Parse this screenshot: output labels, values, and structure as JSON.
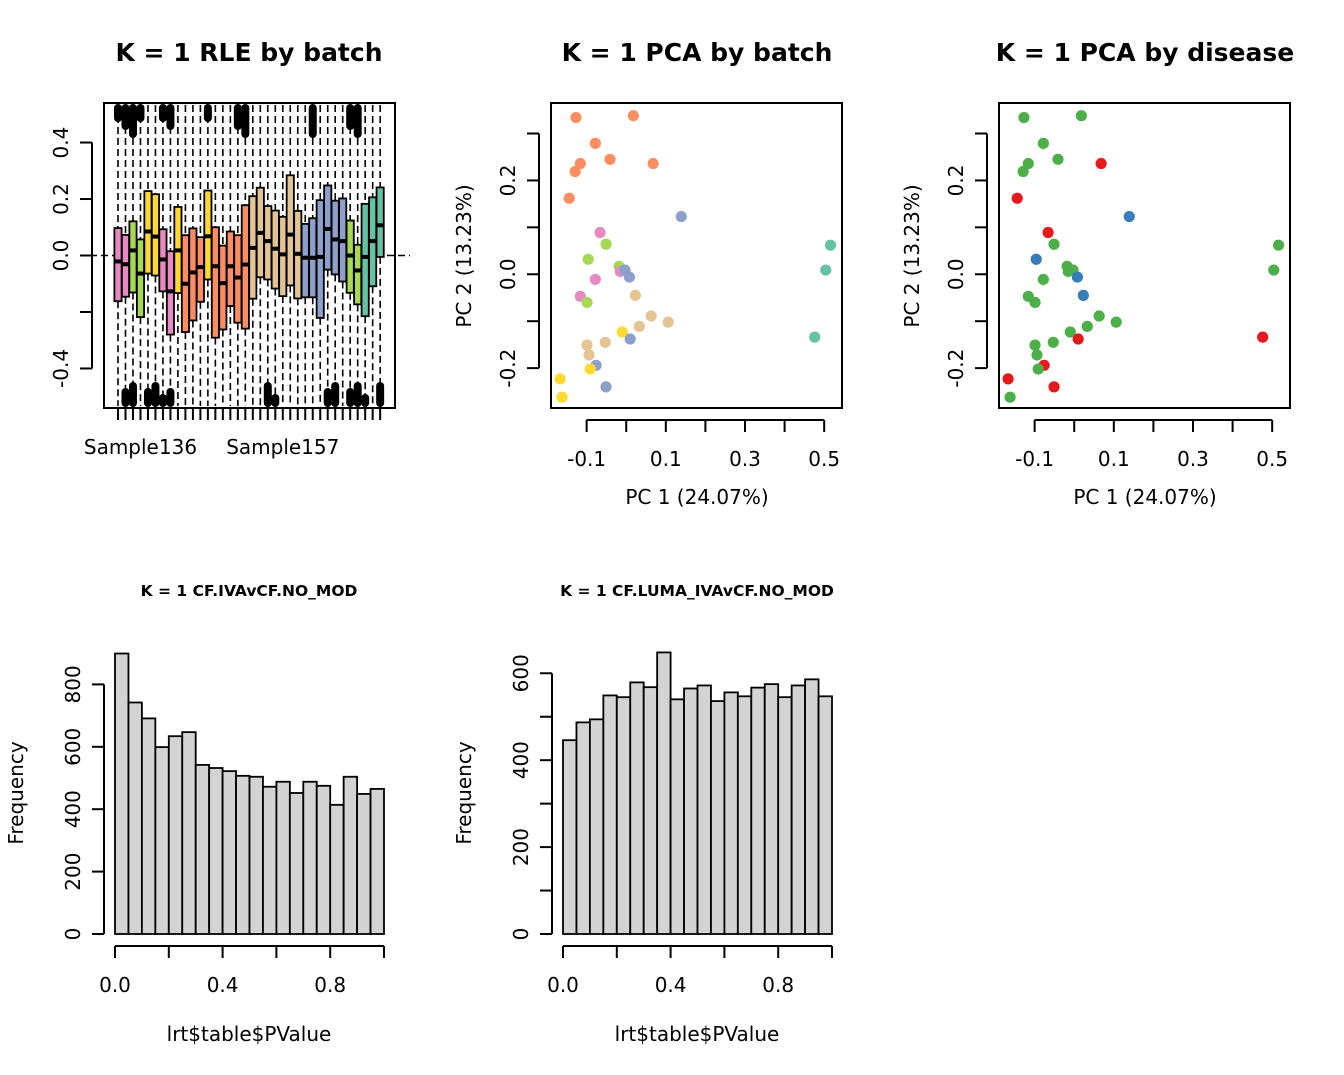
{
  "chart_data": [
    {
      "id": "rle",
      "type": "boxplot",
      "title": "K = 1 RLE by batch",
      "xlabel": "",
      "ylabel": "",
      "ylim": [
        -0.54,
        0.54
      ],
      "yticks": [
        -0.4,
        -0.2,
        0.0,
        0.2,
        0.4
      ],
      "ytick_labels": [
        "-0.4",
        "",
        "0.0",
        "0.2",
        "0.4"
      ],
      "xtick_labels": [
        {
          "index": 3,
          "label": "Sample136"
        },
        {
          "index": 22,
          "label": "Sample157"
        }
      ],
      "reference_line": 0,
      "batch_colors": {
        "pink": "#E78AC3",
        "lime": "#A6D854",
        "yellow": "#FFD92F",
        "orange": "#FC8D62",
        "tan": "#E5C494",
        "blue": "#8DA0CB",
        "teal": "#66C2A5"
      },
      "boxes": [
        {
          "batch": "pink",
          "q3": 0.097,
          "median": -0.021,
          "q1": -0.162,
          "out_top": true,
          "out_bottom": false
        },
        {
          "batch": "pink",
          "q3": 0.073,
          "median": -0.031,
          "q1": -0.146,
          "out_top": true,
          "out_bottom": true
        },
        {
          "batch": "lime",
          "q3": 0.121,
          "median": 0.018,
          "q1": -0.131,
          "out_top": true,
          "out_bottom": true
        },
        {
          "batch": "lime",
          "q3": 0.057,
          "median": -0.064,
          "q1": -0.218,
          "out_top": true,
          "out_bottom": false
        },
        {
          "batch": "yellow",
          "q3": 0.228,
          "median": 0.085,
          "q1": -0.064,
          "out_top": false,
          "out_bottom": true
        },
        {
          "batch": "yellow",
          "q3": 0.217,
          "median": 0.067,
          "q1": -0.071,
          "out_top": false,
          "out_bottom": true
        },
        {
          "batch": "pink",
          "q3": 0.093,
          "median": -0.014,
          "q1": -0.127,
          "out_top": true,
          "out_bottom": true
        },
        {
          "batch": "pink",
          "q3": 0.015,
          "median": -0.127,
          "q1": -0.28,
          "out_top": true,
          "out_bottom": true
        },
        {
          "batch": "yellow",
          "q3": 0.172,
          "median": 0.018,
          "q1": -0.133,
          "out_top": false,
          "out_bottom": false
        },
        {
          "batch": "orange",
          "q3": 0.072,
          "median": -0.1,
          "q1": -0.271,
          "out_top": false,
          "out_bottom": false
        },
        {
          "batch": "orange",
          "q3": 0.096,
          "median": -0.06,
          "q1": -0.23,
          "out_top": false,
          "out_bottom": false
        },
        {
          "batch": "orange",
          "q3": 0.065,
          "median": -0.041,
          "q1": -0.164,
          "out_top": false,
          "out_bottom": false
        },
        {
          "batch": "yellow",
          "q3": 0.23,
          "median": 0.068,
          "q1": -0.085,
          "out_top": true,
          "out_bottom": false
        },
        {
          "batch": "orange",
          "q3": 0.1,
          "median": -0.038,
          "q1": -0.291,
          "out_top": false,
          "out_bottom": false
        },
        {
          "batch": "orange",
          "q3": 0.035,
          "median": -0.098,
          "q1": -0.262,
          "out_top": false,
          "out_bottom": false
        },
        {
          "batch": "orange",
          "q3": 0.085,
          "median": -0.038,
          "q1": -0.179,
          "out_top": false,
          "out_bottom": false
        },
        {
          "batch": "orange",
          "q3": 0.072,
          "median": -0.078,
          "q1": -0.238,
          "out_top": true,
          "out_bottom": false
        },
        {
          "batch": "orange",
          "q3": 0.178,
          "median": -0.032,
          "q1": -0.259,
          "out_top": true,
          "out_bottom": false
        },
        {
          "batch": "tan",
          "q3": 0.21,
          "median": 0.027,
          "q1": -0.153,
          "out_top": false,
          "out_bottom": false
        },
        {
          "batch": "tan",
          "q3": 0.24,
          "median": 0.08,
          "q1": -0.077,
          "out_top": false,
          "out_bottom": false
        },
        {
          "batch": "tan",
          "q3": 0.175,
          "median": 0.051,
          "q1": -0.085,
          "out_top": false,
          "out_bottom": true
        },
        {
          "batch": "tan",
          "q3": 0.159,
          "median": 0.024,
          "q1": -0.117,
          "out_top": false,
          "out_bottom": true
        },
        {
          "batch": "tan",
          "q3": 0.137,
          "median": 0.004,
          "q1": -0.144,
          "out_top": false,
          "out_bottom": false
        },
        {
          "batch": "tan",
          "q3": 0.284,
          "median": 0.074,
          "q1": -0.106,
          "out_top": false,
          "out_bottom": false
        },
        {
          "batch": "tan",
          "q3": 0.158,
          "median": 0.006,
          "q1": -0.152,
          "out_top": false,
          "out_bottom": false
        },
        {
          "batch": "blue",
          "q3": 0.112,
          "median": -0.008,
          "q1": -0.148,
          "out_top": false,
          "out_bottom": false
        },
        {
          "batch": "blue",
          "q3": 0.132,
          "median": -0.008,
          "q1": -0.148,
          "out_top": true,
          "out_bottom": false
        },
        {
          "batch": "blue",
          "q3": 0.196,
          "median": -0.005,
          "q1": -0.221,
          "out_top": false,
          "out_bottom": false
        },
        {
          "batch": "blue",
          "q3": 0.248,
          "median": 0.094,
          "q1": -0.05,
          "out_top": false,
          "out_bottom": true
        },
        {
          "batch": "blue",
          "q3": 0.194,
          "median": 0.057,
          "q1": -0.067,
          "out_top": false,
          "out_bottom": true
        },
        {
          "batch": "blue",
          "q3": 0.202,
          "median": 0.051,
          "q1": -0.092,
          "out_top": false,
          "out_bottom": false
        },
        {
          "batch": "lime",
          "q3": 0.124,
          "median": 0.0,
          "q1": -0.132,
          "out_top": true,
          "out_bottom": true
        },
        {
          "batch": "lime",
          "q3": 0.038,
          "median": -0.053,
          "q1": -0.173,
          "out_top": true,
          "out_bottom": true
        },
        {
          "batch": "teal",
          "q3": 0.183,
          "median": -0.005,
          "q1": -0.215,
          "out_top": false,
          "out_bottom": true
        },
        {
          "batch": "teal",
          "q3": 0.206,
          "median": 0.051,
          "q1": -0.109,
          "out_top": false,
          "out_bottom": false
        },
        {
          "batch": "teal",
          "q3": 0.241,
          "median": 0.107,
          "q1": -0.005,
          "out_top": false,
          "out_bottom": true
        }
      ]
    },
    {
      "id": "pca_batch",
      "type": "scatter",
      "title": "K = 1 PCA by batch",
      "xlabel": "PC 1 (24.07%)",
      "ylabel": "PC 2 (13.23%)",
      "xlim": [
        -0.19,
        0.545
      ],
      "ylim": [
        -0.285,
        0.365
      ],
      "xticks": [
        -0.1,
        0.0,
        0.1,
        0.2,
        0.3,
        0.4,
        0.5
      ],
      "xtick_labels": [
        "-0.1",
        "",
        "0.1",
        "",
        "0.3",
        "",
        "0.5"
      ],
      "yticks": [
        -0.2,
        -0.1,
        0.0,
        0.1,
        0.2,
        0.3
      ],
      "ytick_labels": [
        "-0.2",
        "",
        "0.0",
        "",
        "0.2",
        ""
      ],
      "colors": {
        "orange": "#FC8D62",
        "blue": "#8DA0CB",
        "teal": "#66C2A5",
        "pink": "#E78AC3",
        "lime": "#A6D854",
        "yellow": "#FFD92F",
        "tan": "#E5C494"
      },
      "points": [
        {
          "x": -0.127,
          "y": 0.334,
          "group": "orange"
        },
        {
          "x": 0.018,
          "y": 0.338,
          "group": "orange"
        },
        {
          "x": -0.078,
          "y": 0.279,
          "group": "orange"
        },
        {
          "x": -0.041,
          "y": 0.245,
          "group": "orange"
        },
        {
          "x": 0.068,
          "y": 0.236,
          "group": "orange"
        },
        {
          "x": -0.116,
          "y": 0.236,
          "group": "orange"
        },
        {
          "x": -0.129,
          "y": 0.219,
          "group": "orange"
        },
        {
          "x": -0.144,
          "y": 0.162,
          "group": "orange"
        },
        {
          "x": 0.139,
          "y": 0.123,
          "group": "blue"
        },
        {
          "x": 0.516,
          "y": 0.062,
          "group": "teal"
        },
        {
          "x": 0.504,
          "y": 0.009,
          "group": "teal"
        },
        {
          "x": 0.476,
          "y": -0.134,
          "group": "teal"
        },
        {
          "x": -0.066,
          "y": 0.089,
          "group": "pink"
        },
        {
          "x": -0.051,
          "y": 0.064,
          "group": "lime"
        },
        {
          "x": -0.096,
          "y": 0.032,
          "group": "lime"
        },
        {
          "x": -0.018,
          "y": 0.017,
          "group": "lime"
        },
        {
          "x": -0.015,
          "y": 0.006,
          "group": "pink"
        },
        {
          "x": -0.003,
          "y": 0.009,
          "group": "blue"
        },
        {
          "x": 0.008,
          "y": -0.006,
          "group": "blue"
        },
        {
          "x": -0.078,
          "y": -0.011,
          "group": "pink"
        },
        {
          "x": 0.023,
          "y": -0.045,
          "group": "tan"
        },
        {
          "x": -0.116,
          "y": -0.047,
          "group": "pink"
        },
        {
          "x": -0.099,
          "y": -0.06,
          "group": "lime"
        },
        {
          "x": 0.063,
          "y": -0.089,
          "group": "tan"
        },
        {
          "x": 0.106,
          "y": -0.102,
          "group": "tan"
        },
        {
          "x": 0.033,
          "y": -0.111,
          "group": "tan"
        },
        {
          "x": -0.01,
          "y": -0.123,
          "group": "yellow"
        },
        {
          "x": 0.01,
          "y": -0.138,
          "group": "blue"
        },
        {
          "x": -0.053,
          "y": -0.145,
          "group": "tan"
        },
        {
          "x": -0.099,
          "y": -0.151,
          "group": "tan"
        },
        {
          "x": -0.094,
          "y": -0.172,
          "group": "tan"
        },
        {
          "x": -0.076,
          "y": -0.194,
          "group": "blue"
        },
        {
          "x": -0.091,
          "y": -0.202,
          "group": "yellow"
        },
        {
          "x": -0.167,
          "y": -0.223,
          "group": "yellow"
        },
        {
          "x": -0.051,
          "y": -0.24,
          "group": "blue"
        },
        {
          "x": -0.162,
          "y": -0.262,
          "group": "yellow"
        }
      ]
    },
    {
      "id": "pca_disease",
      "type": "scatter",
      "title": "K = 1 PCA by disease",
      "xlabel": "PC 1 (24.07%)",
      "ylabel": "PC 2 (13.23%)",
      "xlim": [
        -0.19,
        0.545
      ],
      "ylim": [
        -0.285,
        0.365
      ],
      "xticks": [
        -0.1,
        0.0,
        0.1,
        0.2,
        0.3,
        0.4,
        0.5
      ],
      "xtick_labels": [
        "-0.1",
        "",
        "0.1",
        "",
        "0.3",
        "",
        "0.5"
      ],
      "yticks": [
        -0.2,
        -0.1,
        0.0,
        0.1,
        0.2,
        0.3
      ],
      "ytick_labels": [
        "-0.2",
        "",
        "0.0",
        "",
        "0.2",
        ""
      ],
      "colors": {
        "green": "#4DAF4A",
        "red": "#E41A1C",
        "blue": "#377EB8"
      },
      "points": [
        {
          "x": -0.127,
          "y": 0.334,
          "group": "green"
        },
        {
          "x": 0.018,
          "y": 0.338,
          "group": "green"
        },
        {
          "x": -0.078,
          "y": 0.279,
          "group": "green"
        },
        {
          "x": -0.041,
          "y": 0.245,
          "group": "green"
        },
        {
          "x": 0.068,
          "y": 0.236,
          "group": "red"
        },
        {
          "x": -0.116,
          "y": 0.236,
          "group": "green"
        },
        {
          "x": -0.129,
          "y": 0.219,
          "group": "green"
        },
        {
          "x": -0.144,
          "y": 0.162,
          "group": "red"
        },
        {
          "x": 0.139,
          "y": 0.123,
          "group": "blue"
        },
        {
          "x": 0.516,
          "y": 0.062,
          "group": "green"
        },
        {
          "x": 0.504,
          "y": 0.009,
          "group": "green"
        },
        {
          "x": 0.476,
          "y": -0.134,
          "group": "red"
        },
        {
          "x": -0.066,
          "y": 0.089,
          "group": "red"
        },
        {
          "x": -0.051,
          "y": 0.064,
          "group": "green"
        },
        {
          "x": -0.096,
          "y": 0.032,
          "group": "blue"
        },
        {
          "x": -0.018,
          "y": 0.017,
          "group": "green"
        },
        {
          "x": -0.015,
          "y": 0.006,
          "group": "green"
        },
        {
          "x": -0.003,
          "y": 0.009,
          "group": "green"
        },
        {
          "x": 0.008,
          "y": -0.006,
          "group": "blue"
        },
        {
          "x": -0.078,
          "y": -0.011,
          "group": "green"
        },
        {
          "x": 0.023,
          "y": -0.045,
          "group": "blue"
        },
        {
          "x": -0.116,
          "y": -0.047,
          "group": "green"
        },
        {
          "x": -0.099,
          "y": -0.06,
          "group": "green"
        },
        {
          "x": 0.063,
          "y": -0.089,
          "group": "green"
        },
        {
          "x": 0.106,
          "y": -0.102,
          "group": "green"
        },
        {
          "x": 0.033,
          "y": -0.111,
          "group": "green"
        },
        {
          "x": -0.01,
          "y": -0.123,
          "group": "green"
        },
        {
          "x": 0.01,
          "y": -0.138,
          "group": "red"
        },
        {
          "x": -0.053,
          "y": -0.145,
          "group": "green"
        },
        {
          "x": -0.099,
          "y": -0.151,
          "group": "green"
        },
        {
          "x": -0.094,
          "y": -0.172,
          "group": "green"
        },
        {
          "x": -0.076,
          "y": -0.194,
          "group": "red"
        },
        {
          "x": -0.091,
          "y": -0.202,
          "group": "green"
        },
        {
          "x": -0.167,
          "y": -0.223,
          "group": "red"
        },
        {
          "x": -0.051,
          "y": -0.24,
          "group": "red"
        },
        {
          "x": -0.162,
          "y": -0.262,
          "group": "green"
        }
      ]
    },
    {
      "id": "hist1",
      "type": "bar",
      "title": "K = 1 CF.IVAvCF.NO_MOD",
      "xlabel": "lrt$table$PValue",
      "ylabel": "Frequency",
      "xlim": [
        0,
        1
      ],
      "ylim": [
        0,
        900
      ],
      "xticks": [
        0.0,
        0.2,
        0.4,
        0.6,
        0.8,
        1.0
      ],
      "xtick_labels": [
        "0.0",
        "",
        "0.4",
        "",
        "0.8",
        ""
      ],
      "yticks": [
        0,
        200,
        400,
        600,
        800
      ],
      "ytick_labels": [
        "0",
        "200",
        "400",
        "600",
        "800"
      ],
      "bar_color": "#D3D3D3",
      "bin_width": 0.05,
      "values": [
        899,
        742,
        691,
        599,
        634,
        647,
        542,
        532,
        522,
        507,
        504,
        472,
        488,
        452,
        488,
        475,
        414,
        504,
        449,
        465
      ]
    },
    {
      "id": "hist2",
      "type": "bar",
      "title": "K = 1 CF.LUMA_IVAvCF.NO_MOD",
      "xlabel": "lrt$table$PValue",
      "ylabel": "Frequency",
      "xlim": [
        0,
        1
      ],
      "ylim": [
        0,
        650
      ],
      "xticks": [
        0.0,
        0.2,
        0.4,
        0.6,
        0.8,
        1.0
      ],
      "xtick_labels": [
        "0.0",
        "",
        "0.4",
        "",
        "0.8",
        ""
      ],
      "yticks": [
        0,
        100,
        200,
        300,
        400,
        500,
        600
      ],
      "ytick_labels": [
        "0",
        "",
        "200",
        "",
        "400",
        "",
        "600"
      ],
      "bar_color": "#D3D3D3",
      "bin_width": 0.05,
      "values": [
        446,
        487,
        494,
        549,
        545,
        579,
        568,
        648,
        540,
        565,
        572,
        536,
        556,
        547,
        567,
        575,
        545,
        572,
        586,
        547
      ]
    }
  ]
}
